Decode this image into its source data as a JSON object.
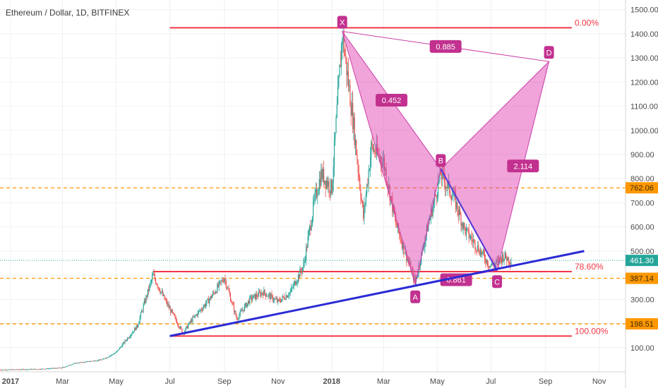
{
  "chart_data": {
    "type": "candlestick",
    "title": "Ethereum / Dollar, 1D, BITFINEX",
    "y_axis": {
      "range": [
        0,
        1540
      ],
      "ticks": [
        100,
        200,
        300,
        400,
        500,
        600,
        700,
        800,
        900,
        1000,
        1100,
        1200,
        1300,
        1400,
        1500
      ],
      "tick_labels": [
        "100.00",
        "200.00",
        "300.00",
        "400.00",
        "500.00",
        "600.00",
        "700.00",
        "800.00",
        "900.00",
        "1000.00",
        "1100.00",
        "1200.00",
        "1300.00",
        "1400.00",
        "1500.00"
      ]
    },
    "x_axis": {
      "range": [
        "2016-12-20",
        "2018-12-01"
      ],
      "ticks": [
        {
          "date": "2017-01-01",
          "label": "2017",
          "bold": true
        },
        {
          "date": "2017-03-01",
          "label": "Mar",
          "bold": false
        },
        {
          "date": "2017-05-01",
          "label": "May",
          "bold": false
        },
        {
          "date": "2017-07-01",
          "label": "Jul",
          "bold": false
        },
        {
          "date": "2017-09-01",
          "label": "Sep",
          "bold": false
        },
        {
          "date": "2017-11-01",
          "label": "Nov",
          "bold": false
        },
        {
          "date": "2018-01-01",
          "label": "2018",
          "bold": true
        },
        {
          "date": "2018-03-01",
          "label": "Mar",
          "bold": false
        },
        {
          "date": "2018-05-01",
          "label": "May",
          "bold": false
        },
        {
          "date": "2018-07-01",
          "label": "Jul",
          "bold": false
        },
        {
          "date": "2018-09-01",
          "label": "Sep",
          "bold": false
        },
        {
          "date": "2018-11-01",
          "label": "Nov",
          "bold": false
        }
      ]
    },
    "price_path": [
      [
        "2016-12-20",
        8
      ],
      [
        "2017-02-01",
        11
      ],
      [
        "2017-02-28",
        16
      ],
      [
        "2017-03-15",
        35
      ],
      [
        "2017-04-15",
        50
      ],
      [
        "2017-05-01",
        80
      ],
      [
        "2017-05-25",
        190
      ],
      [
        "2017-06-12",
        400
      ],
      [
        "2017-06-25",
        300
      ],
      [
        "2017-07-16",
        160
      ],
      [
        "2017-07-25",
        210
      ],
      [
        "2017-08-15",
        300
      ],
      [
        "2017-09-01",
        390
      ],
      [
        "2017-09-15",
        220
      ],
      [
        "2017-09-30",
        300
      ],
      [
        "2017-10-15",
        330
      ],
      [
        "2017-11-01",
        290
      ],
      [
        "2017-11-15",
        330
      ],
      [
        "2017-11-30",
        440
      ],
      [
        "2017-12-12",
        700
      ],
      [
        "2017-12-20",
        820
      ],
      [
        "2018-01-01",
        760
      ],
      [
        "2018-01-13",
        1400
      ],
      [
        "2018-01-25",
        1050
      ],
      [
        "2018-02-06",
        640
      ],
      [
        "2018-02-15",
        930
      ],
      [
        "2018-03-01",
        870
      ],
      [
        "2018-03-15",
        610
      ],
      [
        "2018-04-06",
        370
      ],
      [
        "2018-04-20",
        600
      ],
      [
        "2018-05-05",
        820
      ],
      [
        "2018-05-20",
        720
      ],
      [
        "2018-06-01",
        590
      ],
      [
        "2018-06-15",
        520
      ],
      [
        "2018-06-30",
        440
      ],
      [
        "2018-07-08",
        450
      ],
      [
        "2018-07-15",
        480
      ],
      [
        "2018-07-24",
        461
      ]
    ],
    "horizontal_levels": [
      {
        "name": "fib-0",
        "value": 1425,
        "start": "2017-07-01",
        "end": "2018-10-01",
        "color": "#f23645",
        "label": "0.00%"
      },
      {
        "name": "fib-78",
        "value": 415,
        "start": "2017-06-12",
        "end": "2018-10-01",
        "color": "#f23645",
        "label": "78.60%"
      },
      {
        "name": "fib-100",
        "value": 148,
        "start": "2017-07-01",
        "end": "2018-10-01",
        "color": "#f23645",
        "label": "100.00%"
      },
      {
        "name": "support-762",
        "value": 762.06,
        "color": "#ff9800",
        "label": "762.06"
      },
      {
        "name": "support-387",
        "value": 387.14,
        "color": "#ff9800",
        "label": "387.14"
      },
      {
        "name": "support-198",
        "value": 198.51,
        "color": "#ff9800",
        "label": "198.51"
      }
    ],
    "current_price": {
      "value": 461.3,
      "label": "461.30",
      "color": "#26a69a"
    },
    "trendline": {
      "start": [
        "2017-07-01",
        148
      ],
      "end": [
        "2018-10-15",
        500
      ],
      "color": "#2b2bd6"
    },
    "pattern_points": [
      {
        "label": "X",
        "date": "2018-01-13",
        "value": 1410
      },
      {
        "label": "A",
        "date": "2018-04-06",
        "value": 360
      },
      {
        "label": "B",
        "date": "2018-05-05",
        "value": 840
      },
      {
        "label": "C",
        "date": "2018-07-08",
        "value": 420
      },
      {
        "label": "D",
        "date": "2018-09-05",
        "value": 1285
      }
    ],
    "ratios": [
      {
        "label": "0.452",
        "between": [
          "X",
          "B"
        ]
      },
      {
        "label": "2.114",
        "between": [
          "C",
          "D"
        ]
      },
      {
        "label": "0.885",
        "between": [
          "X",
          "D"
        ]
      },
      {
        "label": "0.861",
        "between": [
          "A",
          "C"
        ]
      }
    ]
  }
}
